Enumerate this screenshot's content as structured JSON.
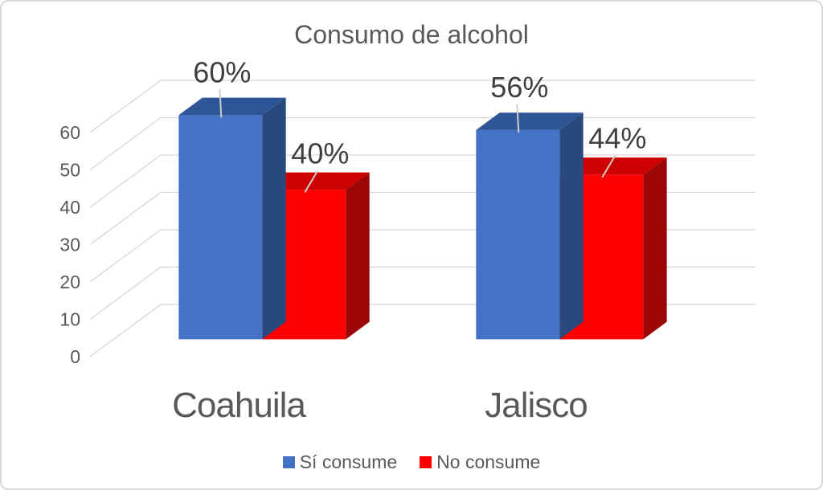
{
  "window": {
    "background": "#FFFFFF",
    "border_color": "#D9D9D9"
  },
  "chart_data": {
    "type": "bar",
    "variant": "3d-clustered-column",
    "title": "Consumo de alcohol",
    "categories": [
      "Coahuila",
      "Jalisco"
    ],
    "series": [
      {
        "name": "Sí consume",
        "values": [
          60,
          56
        ],
        "data_labels": [
          "60%",
          "56%"
        ],
        "color": "#4472C4",
        "color_top": "#2E5697",
        "color_side": "#29497C"
      },
      {
        "name": "No consume",
        "values": [
          40,
          44
        ],
        "data_labels": [
          "40%",
          "44%"
        ],
        "color": "#FE0000",
        "color_top": "#CE0000",
        "color_side": "#9D0606"
      }
    ],
    "value_axis": {
      "min": 0,
      "max": 60,
      "step": 10,
      "tick_labels": [
        "0",
        "10",
        "20",
        "30",
        "40",
        "50",
        "60"
      ]
    },
    "legend": {
      "position": "bottom",
      "entries": [
        "Sí consume",
        "No consume"
      ]
    },
    "grid": true,
    "styles": {
      "title_color": "#595959",
      "axis_label_color": "#595959",
      "category_label_color": "#595959",
      "data_label_color": "#3F3F3F",
      "gridline_color": "#D6D6D6",
      "leader_line_color": "#CFCDCD"
    }
  }
}
